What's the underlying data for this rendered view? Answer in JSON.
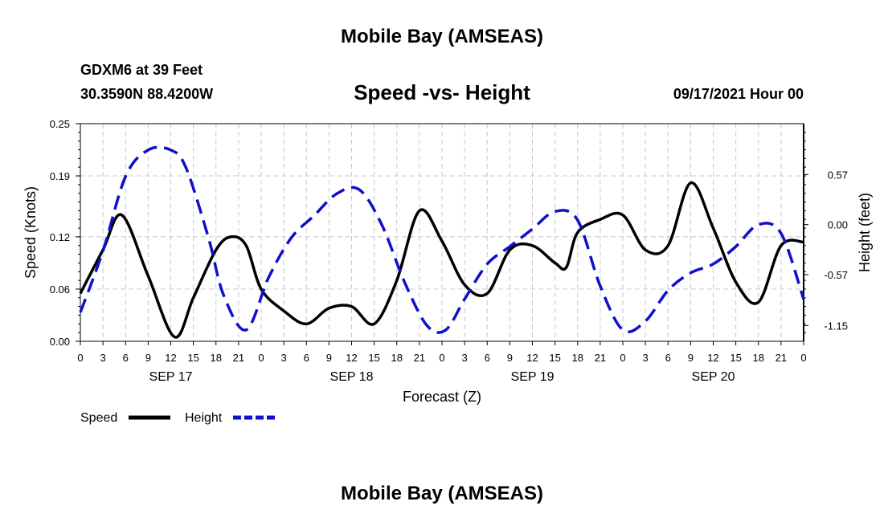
{
  "header": {
    "title": "Mobile Bay (AMSEAS)",
    "station": "GDXM6 at 39 Feet",
    "coords": "30.3590N  88.4200W",
    "subtitle": "Speed -vs- Height",
    "datetime": "09/17/2021 Hour 00"
  },
  "footer": {
    "title": "Mobile Bay (AMSEAS)"
  },
  "legend": {
    "speed_label": "Speed",
    "height_label": "Height"
  },
  "colors": {
    "speed": "#000000",
    "height": "#1010cc",
    "grid": "#c8c8c8"
  },
  "chart_data": {
    "type": "line",
    "xlabel": "Forecast (Z)",
    "ylabel": "Speed (Knots)",
    "y2label": "Height (feet)",
    "xlim": [
      0,
      96
    ],
    "ylim": [
      0,
      0.25
    ],
    "y2lim": [
      -1.33,
      1.15
    ],
    "x_tick_labels": [
      "0",
      "3",
      "6",
      "9",
      "12",
      "15",
      "18",
      "21",
      "0",
      "3",
      "6",
      "9",
      "12",
      "15",
      "18",
      "21",
      "0",
      "3",
      "6",
      "9",
      "12",
      "15",
      "18",
      "21",
      "0",
      "3",
      "6",
      "9",
      "12",
      "15",
      "18",
      "21",
      "0"
    ],
    "day_labels": [
      {
        "label": "SEP 17",
        "x": 12
      },
      {
        "label": "SEP 18",
        "x": 36
      },
      {
        "label": "SEP 19",
        "x": 60
      },
      {
        "label": "SEP 20",
        "x": 84
      }
    ],
    "y_ticks": [
      0.0,
      0.06,
      0.12,
      0.19,
      0.25
    ],
    "y_tick_labels": [
      "0.00",
      "0.06",
      "0.12",
      "0.19",
      "0.25"
    ],
    "y2_ticks": [
      0.57,
      0.0,
      -0.57,
      -1.15
    ],
    "y2_tick_labels": [
      "0.57",
      "0.00",
      "-0.57",
      "-1.15"
    ],
    "grid": true,
    "legend_position": "bottom-left",
    "series": [
      {
        "name": "Speed",
        "axis": "left",
        "style": "solid",
        "x": [
          0,
          3,
          5.5,
          9,
          12.5,
          15,
          18,
          20,
          22,
          24,
          27,
          30,
          33,
          36,
          39,
          42,
          45,
          48,
          51,
          54,
          57,
          60,
          63,
          64.5,
          66,
          69,
          72,
          75,
          78,
          81,
          84,
          87,
          90,
          93,
          96
        ],
        "y": [
          0.055,
          0.105,
          0.145,
          0.075,
          0.005,
          0.05,
          0.105,
          0.12,
          0.11,
          0.06,
          0.035,
          0.02,
          0.038,
          0.04,
          0.02,
          0.07,
          0.15,
          0.115,
          0.065,
          0.055,
          0.105,
          0.11,
          0.09,
          0.085,
          0.125,
          0.14,
          0.145,
          0.105,
          0.11,
          0.182,
          0.13,
          0.068,
          0.045,
          0.11,
          0.114
        ]
      },
      {
        "name": "Height",
        "axis": "right",
        "style": "dashed",
        "x": [
          0,
          3,
          6,
          9,
          12,
          14,
          17,
          19,
          22,
          25,
          28,
          31,
          34,
          37,
          40,
          43,
          46,
          48.5,
          51,
          54,
          57,
          60,
          63,
          66,
          69,
          72,
          75,
          78,
          81,
          84,
          87,
          90,
          93,
          96
        ],
        "y": [
          -1.0,
          -0.3,
          0.55,
          0.85,
          0.85,
          0.65,
          -0.15,
          -0.8,
          -1.2,
          -0.6,
          -0.15,
          0.1,
          0.35,
          0.4,
          0.0,
          -0.65,
          -1.15,
          -1.2,
          -0.85,
          -0.45,
          -0.25,
          -0.05,
          0.15,
          0.05,
          -0.7,
          -1.2,
          -1.1,
          -0.75,
          -0.55,
          -0.45,
          -0.25,
          0.0,
          -0.1,
          -0.85
        ]
      }
    ]
  }
}
